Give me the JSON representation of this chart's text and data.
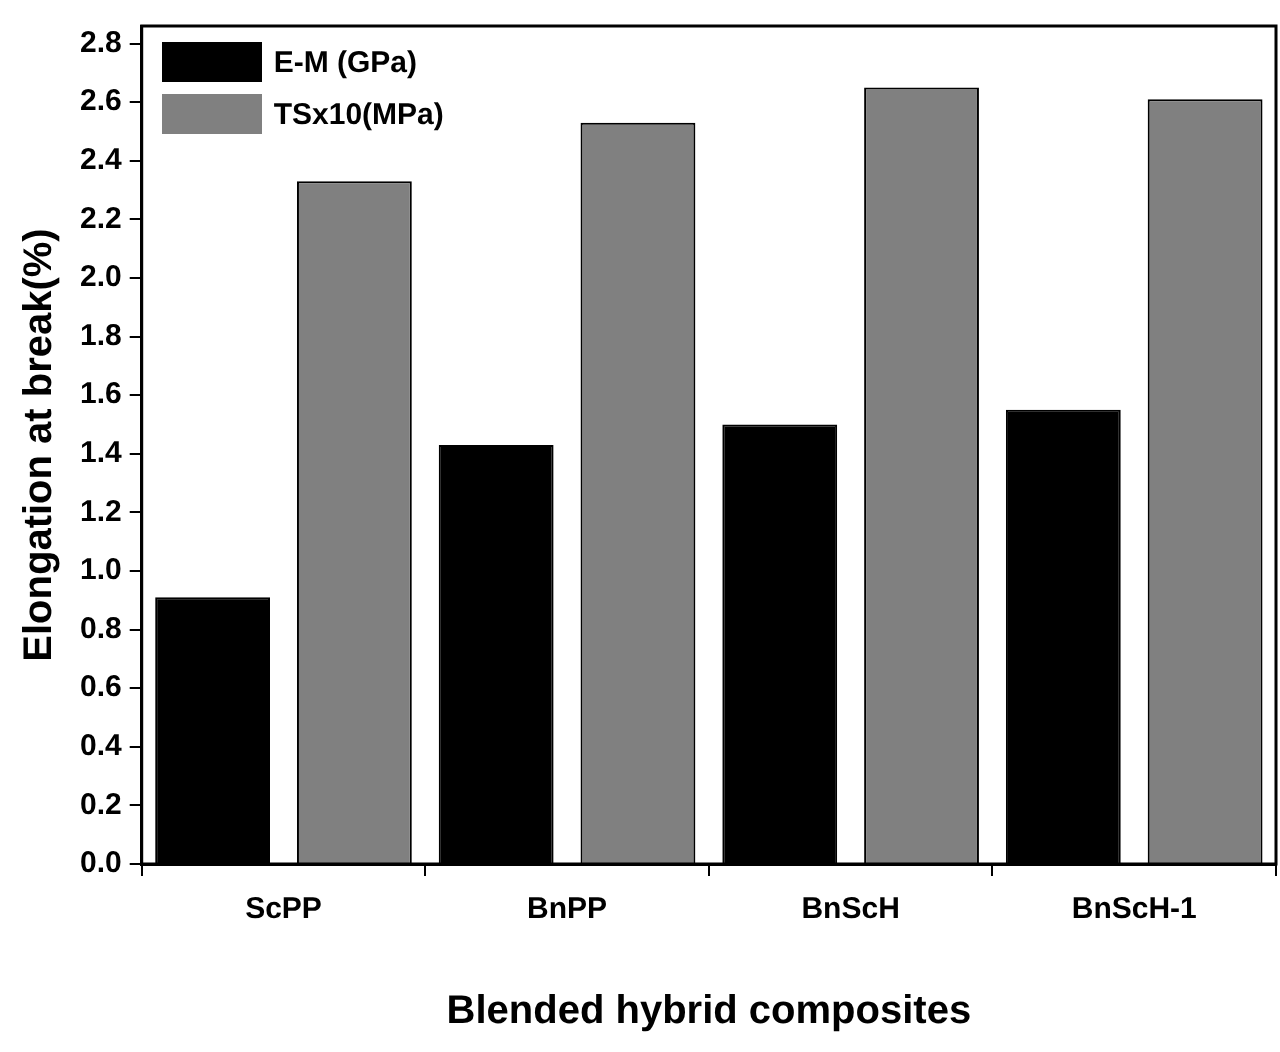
{
  "chart_data": {
    "type": "bar",
    "xlabel": "Blended hybrid composites",
    "ylabel": "Elongation at break(%)",
    "categories": [
      "ScPP",
      "BnPP",
      "BnScH",
      "BnScH-1"
    ],
    "series": [
      {
        "name": "E-M (GPa)",
        "color": "#000000",
        "values": [
          0.91,
          1.43,
          1.5,
          1.55
        ]
      },
      {
        "name": "TSx10(MPa)",
        "color": "#808080",
        "values": [
          2.33,
          2.53,
          2.65,
          2.61
        ]
      }
    ],
    "ylim": [
      0,
      2.86
    ],
    "yticks": [
      {
        "value": 0,
        "label": "0.0"
      },
      0.2,
      0.4,
      0.6,
      0.8,
      {
        "value": 1,
        "label": "1.0"
      },
      1.2,
      1.4,
      1.6,
      1.8,
      {
        "value": 2,
        "label": "2.0"
      },
      2.2,
      2.4,
      2.6,
      2.8
    ],
    "legend": "top left",
    "grid": false
  }
}
